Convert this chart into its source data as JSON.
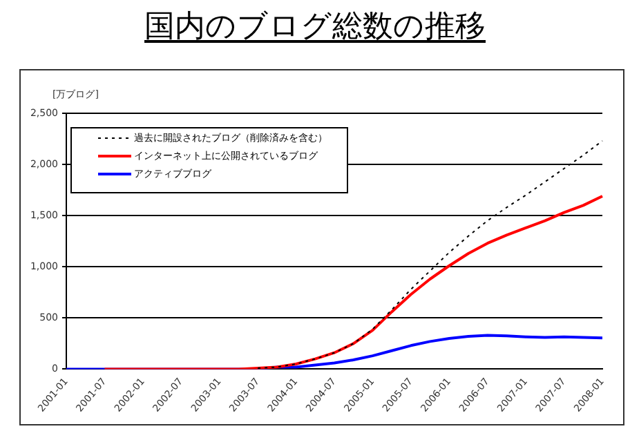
{
  "chart_data": {
    "type": "line",
    "title": "国内のブログ総数の推移",
    "ylabel": "[万ブログ]",
    "categories": [
      "2001-01",
      null,
      "2001-07",
      null,
      "2002-01",
      null,
      "2002-07",
      null,
      "2003-01",
      null,
      "2003-07",
      null,
      "2004-01",
      null,
      "2004-07",
      null,
      "2005-01",
      null,
      "2005-07",
      null,
      "2006-01",
      null,
      "2006-07",
      null,
      "2007-01",
      null,
      "2007-07",
      null,
      "2008-01"
    ],
    "series": [
      {
        "name": "過去に開設されたブログ（削除済みを含む）",
        "color": "#000000",
        "line_style": "dotted",
        "values": [
          null,
          null,
          null,
          null,
          null,
          null,
          null,
          null,
          null,
          null,
          10,
          20,
          50,
          100,
          160,
          250,
          390,
          580,
          780,
          960,
          1140,
          1300,
          1450,
          1580,
          1700,
          1830,
          1960,
          2090,
          2230
        ]
      },
      {
        "name": "インターネット上に公開されているブログ",
        "color": "#ff0000",
        "line_style": "solid",
        "values": [
          null,
          null,
          0,
          0,
          0,
          0,
          0,
          0,
          0,
          0,
          10,
          20,
          50,
          100,
          160,
          250,
          380,
          560,
          730,
          880,
          1010,
          1130,
          1230,
          1310,
          1380,
          1450,
          1530,
          1600,
          1690
        ]
      },
      {
        "name": "アクティブブログ",
        "color": "#0000ff",
        "line_style": "solid",
        "values": [
          0,
          0,
          0,
          0,
          0,
          0,
          0,
          0,
          0,
          0,
          0,
          20,
          20,
          40,
          60,
          90,
          130,
          180,
          230,
          270,
          300,
          320,
          330,
          325,
          315,
          310,
          315,
          310,
          305
        ]
      }
    ],
    "ylim": [
      0,
      2500
    ],
    "yticks": [
      {
        "value": 0,
        "label": "0"
      },
      {
        "value": 500,
        "label": "500"
      },
      {
        "value": 1000,
        "label": "1,000"
      },
      {
        "value": 1500,
        "label": "1,500"
      },
      {
        "value": 2000,
        "label": "2,000"
      },
      {
        "value": 2500,
        "label": "2,500"
      }
    ],
    "grid": "y",
    "legend": "top left",
    "marker": "none"
  }
}
